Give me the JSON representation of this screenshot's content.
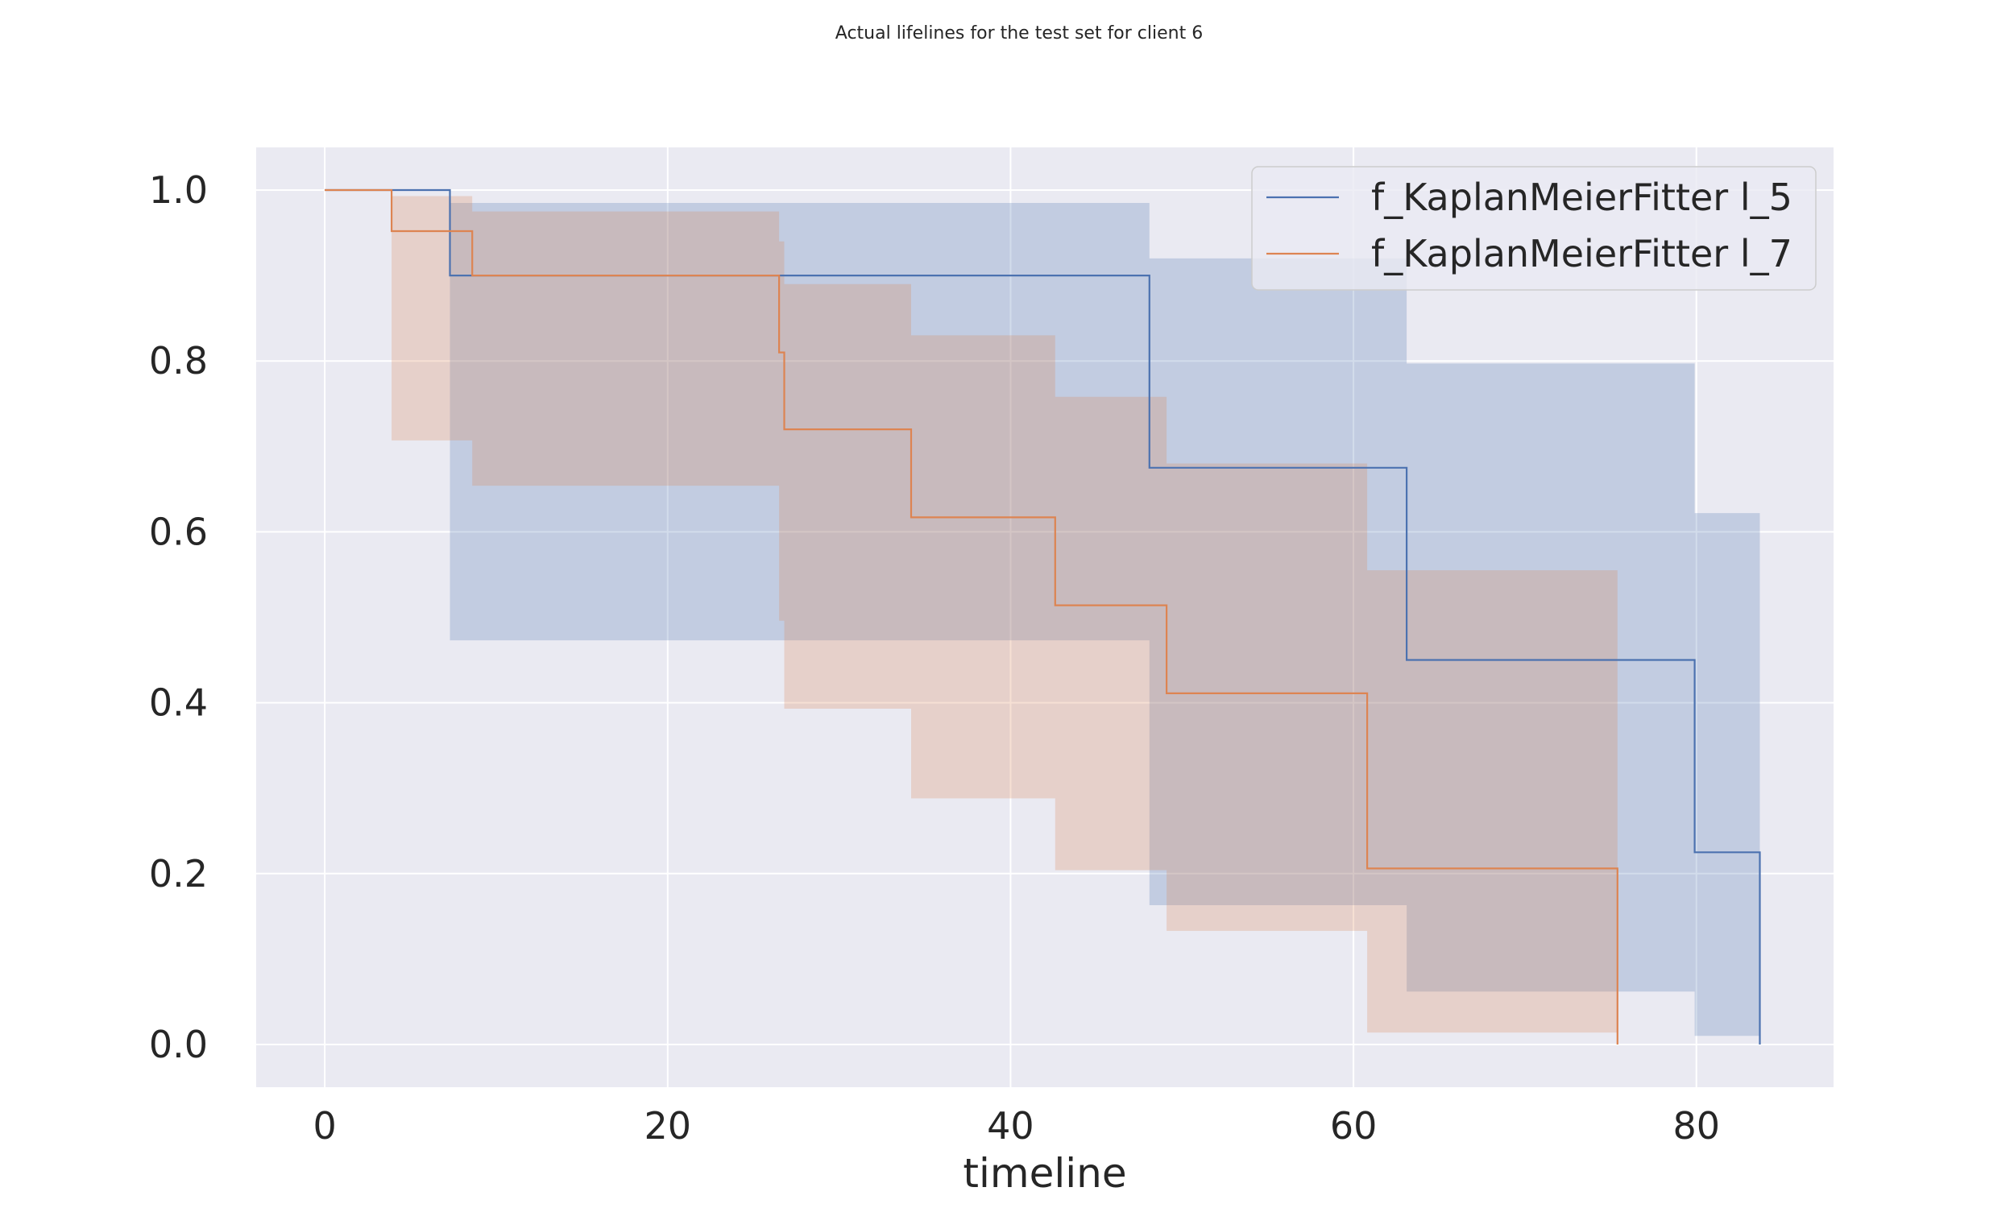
{
  "chart_data": {
    "type": "line",
    "subtype": "step-with-confidence-band",
    "title": "Actual lifelines for the test set for client 6",
    "xlabel": "timeline",
    "ylabel": "",
    "xlim": [
      -4,
      88
    ],
    "ylim": [
      -0.05,
      1.05
    ],
    "xticks": [
      0,
      20,
      40,
      60,
      80
    ],
    "xtick_labels": [
      "0",
      "20",
      "40",
      "60",
      "80"
    ],
    "yticks": [
      0.0,
      0.2,
      0.4,
      0.6,
      0.8,
      1.0
    ],
    "ytick_labels": [
      "0.0",
      "0.2",
      "0.4",
      "0.6",
      "0.8",
      "1.0"
    ],
    "grid": true,
    "legend_position": "top-right",
    "series": [
      {
        "name": "f_KaplanMeierFitter l_5",
        "color": "#4c72b0",
        "band_color": "#4c72b0",
        "times": [
          0,
          7.3,
          48.1,
          63.1,
          79.9,
          83.7
        ],
        "survival": [
          1.0,
          0.9,
          0.675,
          0.45,
          0.225,
          0.0
        ],
        "ci_lower": [
          1.0,
          0.473,
          0.163,
          0.062,
          0.01,
          0.0
        ],
        "ci_upper": [
          1.0,
          0.985,
          0.92,
          0.797,
          0.622,
          0.0
        ]
      },
      {
        "name": "f_KaplanMeierFitter l_7",
        "color": "#dd8452",
        "band_color": "#dd8452",
        "times": [
          0,
          3.9,
          8.6,
          26.5,
          26.8,
          34.2,
          42.6,
          49.1,
          60.8,
          75.4
        ],
        "survival": [
          1.0,
          0.952,
          0.9,
          0.81,
          0.72,
          0.617,
          0.514,
          0.411,
          0.206,
          0.0
        ],
        "ci_lower": [
          1.0,
          0.707,
          0.654,
          0.496,
          0.393,
          0.288,
          0.204,
          0.133,
          0.014,
          0.0
        ],
        "ci_upper": [
          1.0,
          0.993,
          0.975,
          0.94,
          0.89,
          0.83,
          0.758,
          0.68,
          0.555,
          0.0
        ]
      }
    ]
  }
}
